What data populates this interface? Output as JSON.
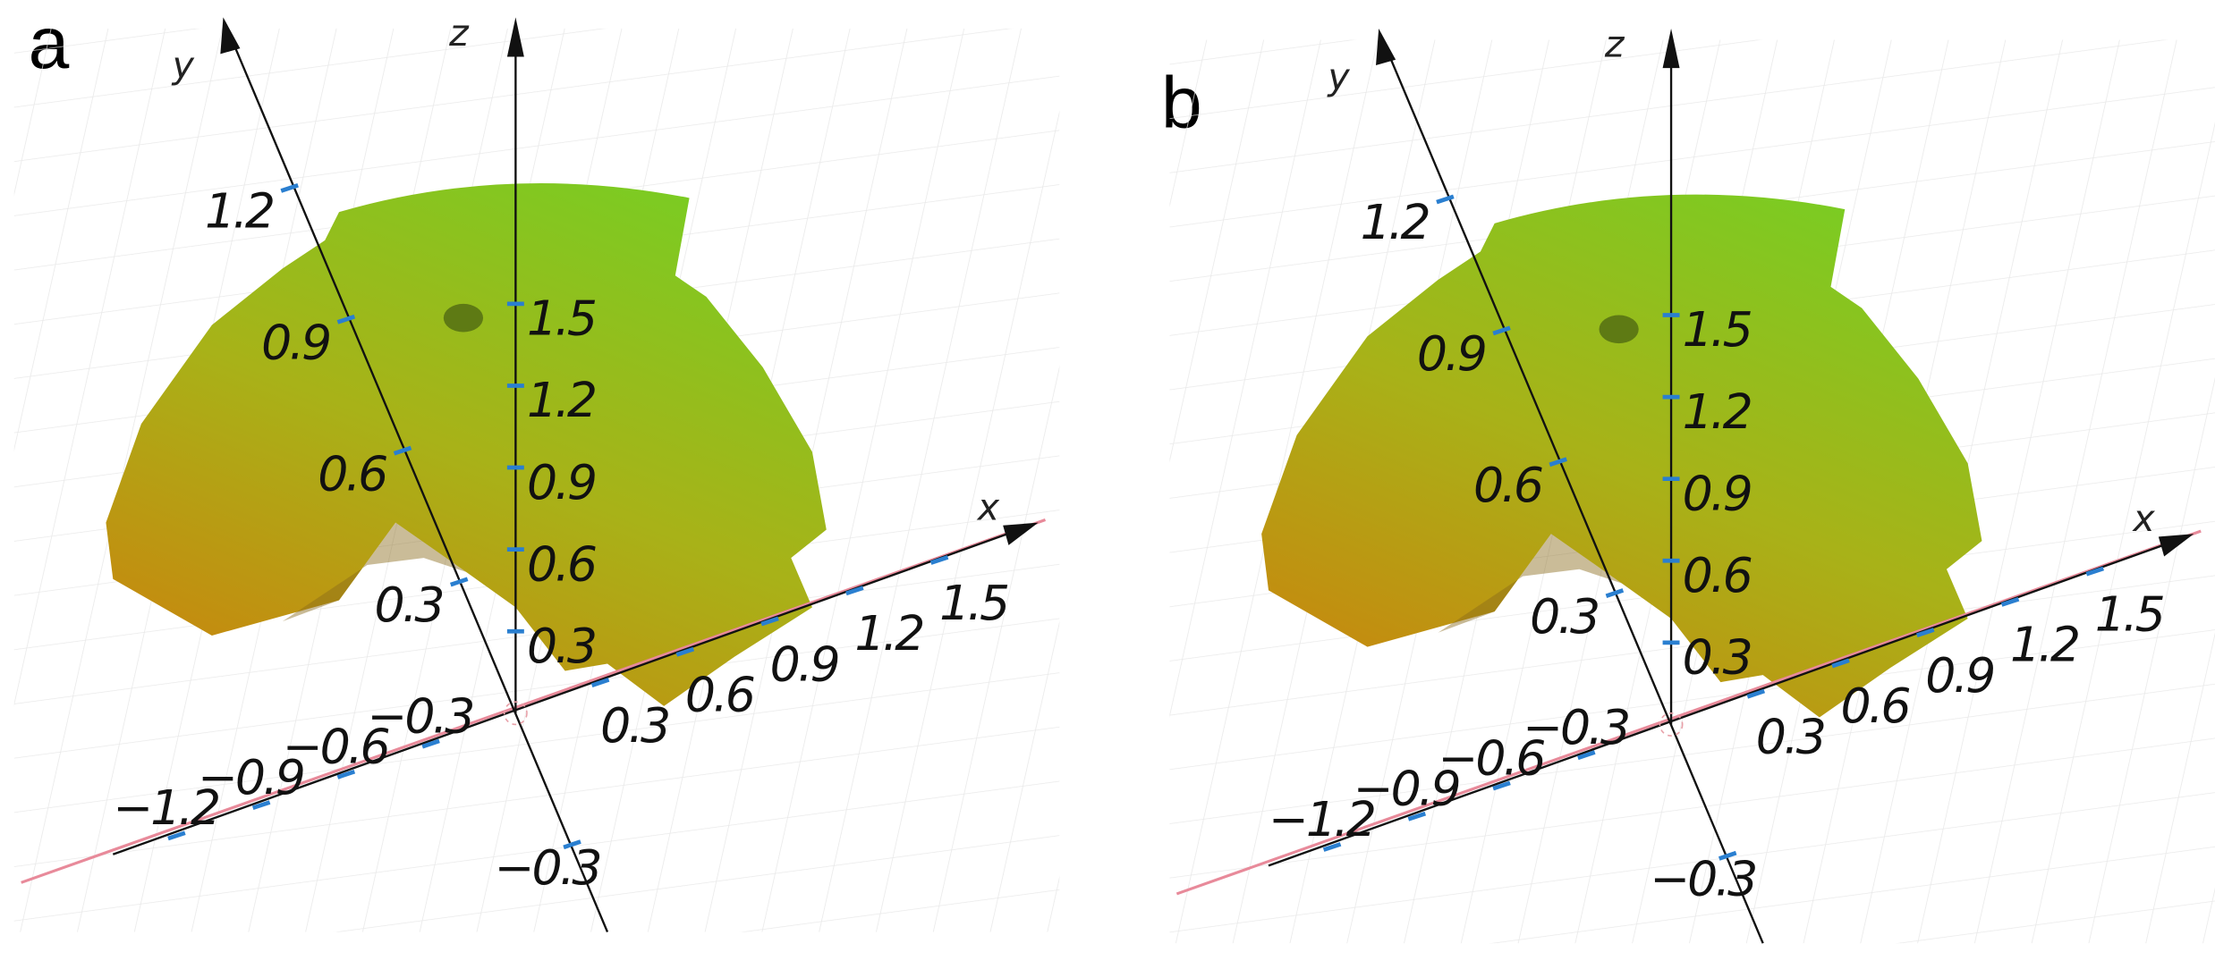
{
  "panels": [
    {
      "label": "a",
      "axes": {
        "x": {
          "name": "x",
          "ticks": [
            "−1.2",
            "−0.9",
            "−0.6",
            "−0.3",
            "0.3",
            "0.6",
            "0.9",
            "1.2",
            "1.5"
          ]
        },
        "y": {
          "name": "y",
          "ticks": [
            "1.2",
            "0.9",
            "0.6",
            "0.3",
            "−0.3"
          ]
        },
        "z": {
          "name": "z",
          "ticks": [
            "0.3",
            "0.6",
            "0.9",
            "1.2",
            "1.5"
          ]
        }
      }
    },
    {
      "label": "b",
      "axes": {
        "x": {
          "name": "x",
          "ticks": [
            "−1.2",
            "−0.9",
            "−0.6",
            "−0.3",
            "0.3",
            "0.6",
            "0.9",
            "1.2",
            "1.5"
          ]
        },
        "y": {
          "name": "y",
          "ticks": [
            "1.2",
            "0.9",
            "0.6",
            "0.3",
            "−0.3"
          ]
        },
        "z": {
          "name": "z",
          "ticks": [
            "0.3",
            "0.6",
            "0.9",
            "1.2",
            "1.5"
          ]
        }
      }
    }
  ]
}
